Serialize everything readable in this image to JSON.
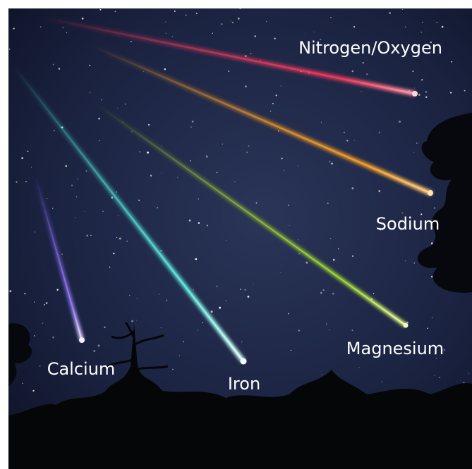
{
  "labels": [
    "Nitrogen/Oxygen",
    "Sodium",
    "Magnesium",
    "Iron",
    "Calcium"
  ]
}
